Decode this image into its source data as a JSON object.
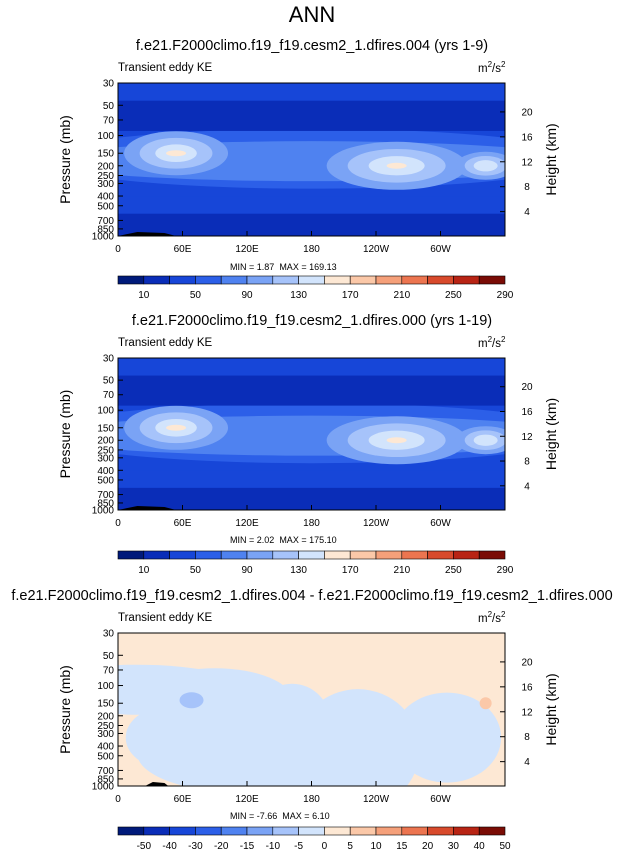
{
  "title": "ANN",
  "colors": {
    "abs_levels": [
      "#001a7a",
      "#0a2db8",
      "#1746d8",
      "#2c5fe8",
      "#4f82f0",
      "#7aa3f5",
      "#a6c3fa",
      "#d2e4fc",
      "#fde8d4",
      "#fbc8a8",
      "#f5a07a",
      "#ec7550",
      "#d84a2c",
      "#b82414",
      "#7a0c05"
    ],
    "diff_levels": [
      "#001a7a",
      "#0a2db8",
      "#1746d8",
      "#2c5fe8",
      "#4f82f0",
      "#7aa3f5",
      "#a6c3fa",
      "#d2e4fc",
      "#fde8d4",
      "#fbc8a8",
      "#f5a07a",
      "#ec7550",
      "#d84a2c",
      "#b82414",
      "#7a0c05"
    ]
  },
  "chart_data": [
    {
      "type": "heatmap",
      "title": "f.e21.F2000climo.f19_f19.cesm2_1.dfires.004 (yrs 1-9)",
      "variable": "Transient eddy KE",
      "units_base": "m",
      "units_exp1": "2",
      "units_mid": "/s",
      "units_exp2": "2",
      "ylabel": "Pressure (mb)",
      "ylabel_right": "Height (km)",
      "x_ticks": [
        "0",
        "60E",
        "120E",
        "180",
        "120W",
        "60W"
      ],
      "y_ticks": [
        "30",
        "50",
        "70",
        "100",
        "150",
        "200",
        "250",
        "300",
        "400",
        "500",
        "700",
        "850",
        "1000"
      ],
      "height_ticks": [
        "20",
        "16",
        "12",
        "8",
        "4"
      ],
      "min_label": "MIN = ",
      "min_value": "1.87",
      "max_label": "MAX = ",
      "max_value": "169.13",
      "colorbar_labels": [
        "10",
        "50",
        "90",
        "130",
        "170",
        "210",
        "250",
        "290"
      ],
      "min": 1.87,
      "max": 169.13
    },
    {
      "type": "heatmap",
      "title": "f.e21.F2000climo.f19_f19.cesm2_1.dfires.000 (yrs 1-19)",
      "variable": "Transient eddy KE",
      "units_base": "m",
      "units_exp1": "2",
      "units_mid": "/s",
      "units_exp2": "2",
      "ylabel": "Pressure (mb)",
      "ylabel_right": "Height (km)",
      "x_ticks": [
        "0",
        "60E",
        "120E",
        "180",
        "120W",
        "60W"
      ],
      "y_ticks": [
        "30",
        "50",
        "70",
        "100",
        "150",
        "200",
        "250",
        "300",
        "400",
        "500",
        "700",
        "850",
        "1000"
      ],
      "height_ticks": [
        "20",
        "16",
        "12",
        "8",
        "4"
      ],
      "min_label": "MIN = ",
      "min_value": "2.02",
      "max_label": "MAX = ",
      "max_value": "175.10",
      "colorbar_labels": [
        "10",
        "50",
        "90",
        "130",
        "170",
        "210",
        "250",
        "290"
      ],
      "min": 2.02,
      "max": 175.1
    },
    {
      "type": "heatmap",
      "title": "f.e21.F2000climo.f19_f19.cesm2_1.dfires.004 - f.e21.F2000climo.f19_f19.cesm2_1.dfires.000",
      "variable": "Transient eddy KE",
      "units_base": "m",
      "units_exp1": "2",
      "units_mid": "/s",
      "units_exp2": "2",
      "ylabel": "Pressure (mb)",
      "ylabel_right": "Height (km)",
      "x_ticks": [
        "0",
        "60E",
        "120E",
        "180",
        "120W",
        "60W"
      ],
      "y_ticks": [
        "30",
        "50",
        "70",
        "100",
        "150",
        "200",
        "250",
        "300",
        "400",
        "500",
        "700",
        "850",
        "1000"
      ],
      "height_ticks": [
        "20",
        "16",
        "12",
        "8",
        "4"
      ],
      "min_label": "MIN = ",
      "min_value": "-7.66",
      "max_label": "MAX = ",
      "max_value": "6.10",
      "colorbar_labels": [
        "-50",
        "-40",
        "-30",
        "-20",
        "-15",
        "-10",
        "-5",
        "0",
        "5",
        "10",
        "15",
        "20",
        "30",
        "40",
        "50"
      ],
      "min": -7.66,
      "max": 6.1
    }
  ]
}
